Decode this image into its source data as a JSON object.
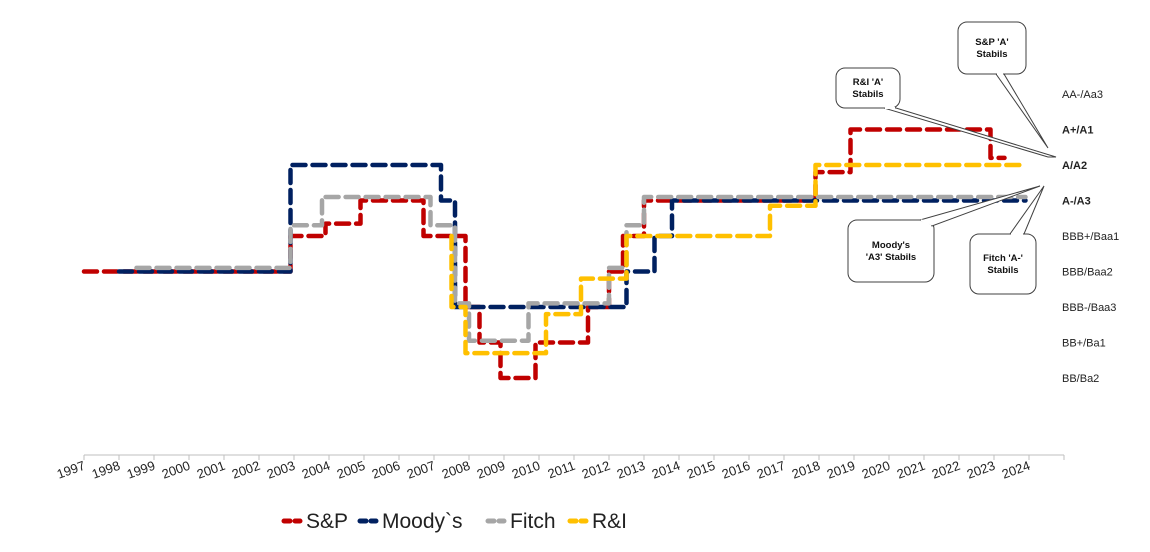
{
  "chart_data": {
    "type": "line",
    "style": "dashed step lines",
    "x_tick_labels": [
      "1997",
      "1998",
      "1999",
      "2000",
      "2001",
      "2002",
      "2003",
      "2004",
      "2005",
      "2006",
      "2007",
      "2008",
      "2009",
      "2010",
      "2011",
      "2012",
      "2013",
      "2014",
      "2015",
      "2016",
      "2017",
      "2018",
      "2019",
      "2020",
      "2021",
      "2022",
      "2023",
      "2024"
    ],
    "xlim": [
      1997,
      2025
    ],
    "rating_scale": [
      "BB/Ba2",
      "BB+/Ba1",
      "BBB-/Baa3",
      "BBB/Baa2",
      "BBB+/Baa1",
      "A-/A3",
      "A/A2",
      "A+/A1",
      "AA-/Aa3"
    ],
    "bold_ratings": [
      "A-/A3",
      "A/A2",
      "A+/A1"
    ],
    "ylim": [
      0,
      8
    ],
    "series": [
      {
        "name": "S&P",
        "color": "#C00000",
        "points": [
          [
            1997.0,
            3
          ],
          [
            2002.9,
            3
          ],
          [
            2002.9,
            4
          ],
          [
            2003.9,
            4
          ],
          [
            2003.9,
            4.35
          ],
          [
            2004.9,
            4.35
          ],
          [
            2004.9,
            5
          ],
          [
            2006.7,
            5
          ],
          [
            2006.7,
            4
          ],
          [
            2007.9,
            4
          ],
          [
            2007.9,
            2
          ],
          [
            2008.3,
            2
          ],
          [
            2008.3,
            1
          ],
          [
            2008.9,
            1
          ],
          [
            2008.9,
            0
          ],
          [
            2009.9,
            0
          ],
          [
            2009.9,
            1
          ],
          [
            2011.4,
            1
          ],
          [
            2011.4,
            2
          ],
          [
            2012.0,
            2
          ],
          [
            2012.0,
            3
          ],
          [
            2012.4,
            3
          ],
          [
            2012.4,
            4
          ],
          [
            2013.0,
            4
          ],
          [
            2013.0,
            5
          ],
          [
            2017.9,
            5
          ],
          [
            2017.9,
            5.8
          ],
          [
            2018.9,
            5.8
          ],
          [
            2018.9,
            7
          ],
          [
            2022.9,
            7
          ],
          [
            2022.9,
            6.2
          ],
          [
            2023.3,
            6.2
          ]
        ]
      },
      {
        "name": "Moody`s",
        "color": "#002060",
        "points": [
          [
            1998.0,
            3
          ],
          [
            2002.9,
            3
          ],
          [
            2002.9,
            6
          ],
          [
            2007.2,
            6
          ],
          [
            2007.2,
            5
          ],
          [
            2007.6,
            5
          ],
          [
            2007.6,
            2
          ],
          [
            2012.5,
            2
          ],
          [
            2012.5,
            3
          ],
          [
            2013.3,
            3
          ],
          [
            2013.3,
            4
          ],
          [
            2013.8,
            4
          ],
          [
            2013.8,
            5
          ],
          [
            2023.9,
            5
          ]
        ]
      },
      {
        "name": "Fitch",
        "color": "#A6A6A6",
        "points": [
          [
            1998.5,
            3.1
          ],
          [
            2002.9,
            3.1
          ],
          [
            2002.9,
            4.3
          ],
          [
            2003.8,
            4.3
          ],
          [
            2003.8,
            5.1
          ],
          [
            2006.9,
            5.1
          ],
          [
            2006.9,
            4.3
          ],
          [
            2007.6,
            4.3
          ],
          [
            2007.6,
            2.1
          ],
          [
            2008.0,
            2.1
          ],
          [
            2008.0,
            1.05
          ],
          [
            2009.7,
            1.05
          ],
          [
            2009.7,
            2.1
          ],
          [
            2012.0,
            2.1
          ],
          [
            2012.0,
            3.1
          ],
          [
            2012.5,
            3.1
          ],
          [
            2012.5,
            4.3
          ],
          [
            2013.0,
            4.3
          ],
          [
            2013.0,
            5.1
          ],
          [
            2023.9,
            5.1
          ]
        ]
      },
      {
        "name": "R&I",
        "color": "#FFC000",
        "points": [
          [
            2007.5,
            4
          ],
          [
            2007.5,
            2
          ],
          [
            2007.9,
            2
          ],
          [
            2007.9,
            0.7
          ],
          [
            2010.2,
            0.7
          ],
          [
            2010.2,
            1.8
          ],
          [
            2011.2,
            1.8
          ],
          [
            2011.2,
            2.8
          ],
          [
            2012.5,
            2.8
          ],
          [
            2012.5,
            4
          ],
          [
            2016.6,
            4
          ],
          [
            2016.6,
            4.85
          ],
          [
            2017.9,
            4.85
          ],
          [
            2017.9,
            6
          ],
          [
            2023.9,
            6
          ]
        ]
      }
    ],
    "annotations": [
      {
        "id": "sp",
        "lines": [
          "S&P  'A'",
          "Stabils"
        ]
      },
      {
        "id": "ri",
        "lines": [
          "R&I  'A'",
          "Stabils"
        ]
      },
      {
        "id": "moodys",
        "lines": [
          "Moody's",
          "'A3' Stabils"
        ]
      },
      {
        "id": "fitch",
        "lines": [
          "Fitch  'A-'",
          "Stabils"
        ]
      }
    ],
    "legend": {
      "position": "bottom-center"
    },
    "grid": false
  }
}
